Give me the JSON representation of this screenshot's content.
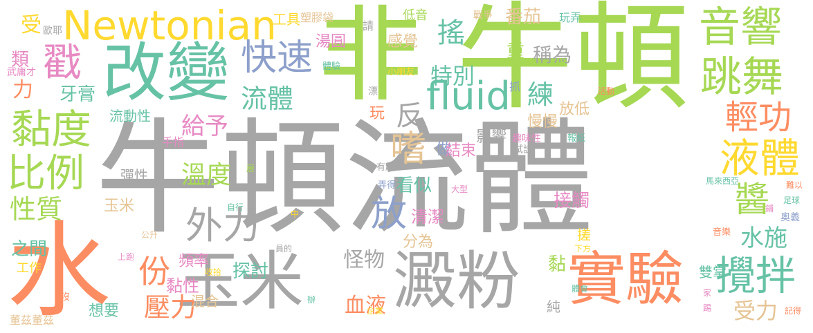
{
  "palette": {
    "gray": "#a6a6a6",
    "green": "#a6d854",
    "orange": "#fc8d62",
    "yellow": "#ffd92f",
    "teal": "#66c2a5",
    "blue": "#8da0cb",
    "pink": "#e78ac3",
    "tan": "#e5c494"
  },
  "words": [
    {
      "text": "牛頓流體",
      "color": "gray"
    },
    {
      "text": "牛頓",
      "color": "green"
    },
    {
      "text": "水",
      "color": "orange"
    },
    {
      "text": "非",
      "color": "green"
    },
    {
      "text": "玉米",
      "color": "gray"
    },
    {
      "text": "澱粉",
      "color": "gray"
    },
    {
      "text": "改變",
      "color": "teal"
    },
    {
      "text": "實驗",
      "color": "orange"
    },
    {
      "text": "Newtonian",
      "color": "yellow"
    },
    {
      "text": "fluid",
      "color": "teal"
    },
    {
      "text": "外力",
      "color": "gray"
    },
    {
      "text": "音響",
      "color": "green"
    },
    {
      "text": "跳舞",
      "color": "green"
    },
    {
      "text": "黏度",
      "color": "green"
    },
    {
      "text": "比例",
      "color": "green"
    },
    {
      "text": "液體",
      "color": "yellow"
    },
    {
      "text": "醬",
      "color": "green"
    },
    {
      "text": "攪拌",
      "color": "teal"
    },
    {
      "text": "輕功",
      "color": "orange"
    },
    {
      "text": "快速",
      "color": "blue"
    },
    {
      "text": "戳",
      "color": "pink"
    },
    {
      "text": "搖",
      "color": "teal"
    },
    {
      "text": "流體",
      "color": "teal"
    },
    {
      "text": "放",
      "color": "blue"
    },
    {
      "text": "嗜",
      "color": "tan"
    },
    {
      "text": "反",
      "color": "gray"
    },
    {
      "text": "份",
      "color": "orange"
    },
    {
      "text": "壓力",
      "color": "orange"
    },
    {
      "text": "水施",
      "color": "teal"
    },
    {
      "text": "受力",
      "color": "tan"
    },
    {
      "text": "性質",
      "color": "green"
    },
    {
      "text": "溫度",
      "color": "green"
    },
    {
      "text": "給予",
      "color": "pink"
    },
    {
      "text": "練",
      "color": "teal"
    },
    {
      "text": "特別",
      "color": "teal"
    },
    {
      "text": "稱為",
      "color": "gray"
    },
    {
      "text": "番茄",
      "color": "tan"
    },
    {
      "text": "湯圓",
      "color": "pink"
    },
    {
      "text": "感覺",
      "color": "tan"
    },
    {
      "text": "重",
      "color": "green"
    },
    {
      "text": "受",
      "color": "yellow"
    },
    {
      "text": "類",
      "color": "pink"
    },
    {
      "text": "力",
      "color": "orange"
    },
    {
      "text": "牙膏",
      "color": "teal"
    },
    {
      "text": "流動性",
      "color": "teal"
    },
    {
      "text": "手指",
      "color": "pink"
    },
    {
      "text": "彈性",
      "color": "gray"
    },
    {
      "text": "看似",
      "color": "teal"
    },
    {
      "text": "做",
      "color": "blue"
    },
    {
      "text": "結束",
      "color": "pink"
    },
    {
      "text": "影響",
      "color": "gray"
    },
    {
      "text": "慢慢",
      "color": "tan"
    },
    {
      "text": "放低",
      "color": "tan"
    },
    {
      "text": "接觸",
      "color": "pink"
    },
    {
      "text": "清潔",
      "color": "pink"
    },
    {
      "text": "分為",
      "color": "tan"
    },
    {
      "text": "怪物",
      "color": "gray"
    },
    {
      "text": "血液",
      "color": "orange"
    },
    {
      "text": "探討",
      "color": "teal"
    },
    {
      "text": "頻率",
      "color": "pink"
    },
    {
      "text": "黏性",
      "color": "pink"
    },
    {
      "text": "混合",
      "color": "tan"
    },
    {
      "text": "雙掌",
      "color": "teal"
    },
    {
      "text": "之間",
      "color": "teal"
    },
    {
      "text": "工作",
      "color": "yellow"
    },
    {
      "text": "想要",
      "color": "teal"
    },
    {
      "text": "玉米",
      "color": "tan"
    },
    {
      "text": "黏",
      "color": "green"
    },
    {
      "text": "純",
      "color": "gray"
    },
    {
      "text": "搓",
      "color": "yellow"
    },
    {
      "text": "玩",
      "color": "orange"
    },
    {
      "text": "工具",
      "color": "yellow"
    },
    {
      "text": "塑膠袋",
      "color": "tan"
    },
    {
      "text": "請",
      "color": "gray"
    },
    {
      "text": "低音",
      "color": "green"
    },
    {
      "text": "戰爭",
      "color": "tan"
    },
    {
      "text": "玩弄",
      "color": "teal"
    },
    {
      "text": "歐耶",
      "color": "gray"
    },
    {
      "text": "武庸才",
      "color": "pink"
    },
    {
      "text": "體驗",
      "color": "teal"
    },
    {
      "text": "小朋友",
      "color": "yellow"
    },
    {
      "text": "漂",
      "color": "gray"
    },
    {
      "text": "抓",
      "color": "blue"
    },
    {
      "text": "活動",
      "color": "orange"
    },
    {
      "text": "趣味性",
      "color": "pink"
    },
    {
      "text": "報紙",
      "color": "teal"
    },
    {
      "text": "試試",
      "color": "gray"
    },
    {
      "text": "有趣",
      "color": "gray"
    },
    {
      "text": "層",
      "color": "green"
    },
    {
      "text": "弄得",
      "color": "blue"
    },
    {
      "text": "大型",
      "color": "pink"
    },
    {
      "text": "馬來西亞",
      "color": "teal"
    },
    {
      "text": "難以",
      "color": "orange"
    },
    {
      "text": "足球",
      "color": "teal"
    },
    {
      "text": "鋪",
      "color": "pink"
    },
    {
      "text": "奧義",
      "color": "blue"
    },
    {
      "text": "自行",
      "color": "teal"
    },
    {
      "text": "中",
      "color": "yellow"
    },
    {
      "text": "音樂",
      "color": "orange"
    },
    {
      "text": "下方",
      "color": "yellow"
    },
    {
      "text": "公升",
      "color": "tan"
    },
    {
      "text": "上跑",
      "color": "pink"
    },
    {
      "text": "員的",
      "color": "gray"
    },
    {
      "text": "收拾",
      "color": "yellow"
    },
    {
      "text": "體會",
      "color": "teal"
    },
    {
      "text": "家",
      "color": "pink"
    },
    {
      "text": "記得",
      "color": "orange"
    },
    {
      "text": "踢",
      "color": "pink"
    },
    {
      "text": "沒",
      "color": "orange"
    },
    {
      "text": "辦",
      "color": "teal"
    },
    {
      "text": "企業",
      "color": "yellow"
    },
    {
      "text": "董茲董茲",
      "color": "tan"
    }
  ]
}
